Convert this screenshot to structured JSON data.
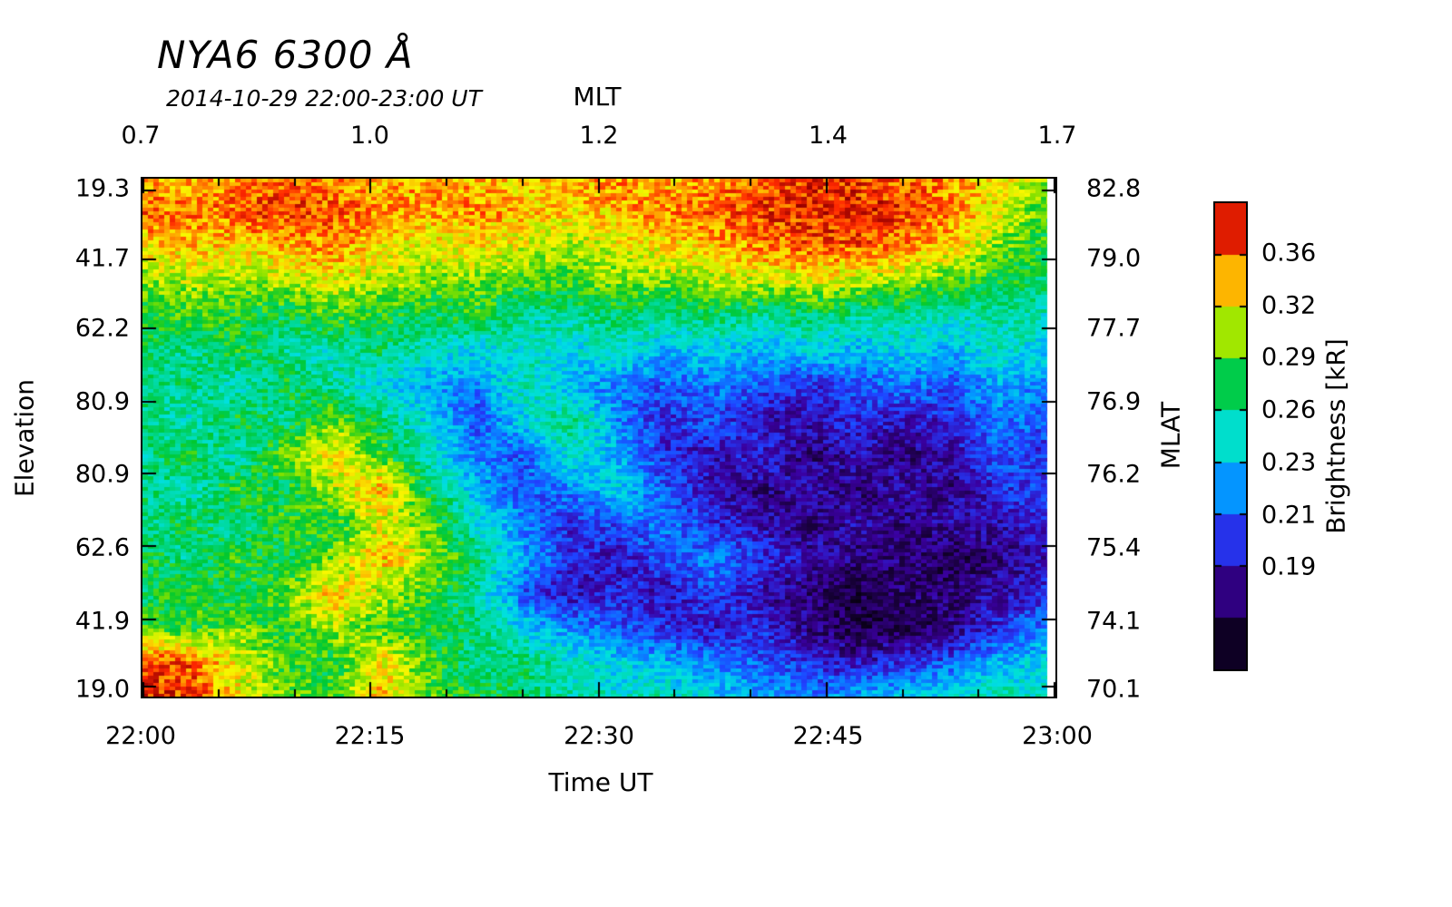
{
  "chart_data": {
    "type": "heatmap",
    "title": "NYA6 6300 Å",
    "subtitle": "2014-10-29 22:00-23:00 UT",
    "xlabel_top": "MLT",
    "xlabel_bottom": "Time UT",
    "ylabel_left": "Elevation",
    "ylabel_right": "MLAT",
    "colorbar_label": "Brightness [kR]",
    "x_ticks_top": {
      "labels": [
        "0.7",
        "1.0",
        "1.2",
        "1.4",
        "1.7"
      ],
      "fractions": [
        0,
        0.25,
        0.5,
        0.75,
        1
      ]
    },
    "x_ticks_bottom": {
      "labels": [
        "22:00",
        "22:15",
        "22:30",
        "22:45",
        "23:00"
      ],
      "fractions": [
        0,
        0.25,
        0.5,
        0.75,
        1
      ]
    },
    "y_ticks_left": {
      "labels": [
        "19.3",
        "41.7",
        "62.2",
        "80.9",
        "80.9",
        "62.6",
        "41.9",
        "19.0"
      ],
      "fractions": [
        0.023,
        0.157,
        0.29,
        0.431,
        0.571,
        0.711,
        0.852,
        0.983
      ]
    },
    "y_ticks_right": {
      "labels": [
        "82.8",
        "79.0",
        "77.7",
        "76.9",
        "76.2",
        "75.4",
        "74.1",
        "70.1"
      ],
      "fractions": [
        0.023,
        0.157,
        0.29,
        0.431,
        0.571,
        0.711,
        0.852,
        0.983
      ]
    },
    "colorbar_ticks": {
      "labels": [
        "0.36",
        "0.32",
        "0.29",
        "0.26",
        "0.23",
        "0.21",
        "0.19"
      ],
      "fractions_from_top": [
        0.111,
        0.222,
        0.333,
        0.444,
        0.556,
        0.667,
        0.778
      ]
    },
    "value_range_kR": [
      0.155,
      0.4
    ],
    "scale": "log",
    "colorbar_segments": 9,
    "colormap": [
      [
        0.0,
        "#000000"
      ],
      [
        0.1,
        "#1a0040"
      ],
      [
        0.2,
        "#3a00a0"
      ],
      [
        0.3,
        "#2040ff"
      ],
      [
        0.4,
        "#00a0ff"
      ],
      [
        0.48,
        "#00e0e0"
      ],
      [
        0.56,
        "#00d890"
      ],
      [
        0.63,
        "#00c830"
      ],
      [
        0.7,
        "#80e000"
      ],
      [
        0.78,
        "#f8f800"
      ],
      [
        0.85,
        "#ffa000"
      ],
      [
        0.92,
        "#ff2800"
      ],
      [
        1.0,
        "#960000"
      ]
    ],
    "grid": {
      "description": "Approximate brightness values [kR]; rows = elevation bins top(19.3)->bottom(19.0), cols = time 22:00->23:00",
      "n_rows": 16,
      "n_cols": 20,
      "values": [
        [
          0.35,
          0.34,
          0.35,
          0.36,
          0.35,
          0.34,
          0.35,
          0.34,
          0.33,
          0.34,
          0.35,
          0.34,
          0.35,
          0.36,
          0.37,
          0.37,
          0.36,
          0.35,
          0.33,
          0.3
        ],
        [
          0.36,
          0.35,
          0.36,
          0.37,
          0.36,
          0.35,
          0.34,
          0.35,
          0.34,
          0.33,
          0.34,
          0.35,
          0.36,
          0.37,
          0.38,
          0.38,
          0.37,
          0.35,
          0.32,
          0.29
        ],
        [
          0.33,
          0.34,
          0.33,
          0.34,
          0.35,
          0.33,
          0.32,
          0.33,
          0.32,
          0.31,
          0.32,
          0.33,
          0.34,
          0.35,
          0.36,
          0.36,
          0.35,
          0.33,
          0.3,
          0.28
        ],
        [
          0.3,
          0.31,
          0.3,
          0.31,
          0.32,
          0.31,
          0.3,
          0.3,
          0.29,
          0.29,
          0.3,
          0.3,
          0.31,
          0.31,
          0.32,
          0.31,
          0.3,
          0.29,
          0.28,
          0.27
        ],
        [
          0.28,
          0.29,
          0.28,
          0.27,
          0.29,
          0.28,
          0.27,
          0.28,
          0.26,
          0.26,
          0.27,
          0.26,
          0.27,
          0.26,
          0.27,
          0.26,
          0.26,
          0.25,
          0.26,
          0.25
        ],
        [
          0.27,
          0.26,
          0.28,
          0.26,
          0.25,
          0.27,
          0.25,
          0.24,
          0.25,
          0.24,
          0.25,
          0.23,
          0.24,
          0.23,
          0.24,
          0.23,
          0.24,
          0.23,
          0.25,
          0.24
        ],
        [
          0.26,
          0.27,
          0.25,
          0.28,
          0.26,
          0.24,
          0.23,
          0.22,
          0.26,
          0.23,
          0.22,
          0.21,
          0.22,
          0.21,
          0.2,
          0.21,
          0.22,
          0.21,
          0.23,
          0.22
        ],
        [
          0.27,
          0.25,
          0.28,
          0.26,
          0.3,
          0.27,
          0.24,
          0.21,
          0.24,
          0.27,
          0.22,
          0.2,
          0.21,
          0.19,
          0.19,
          0.2,
          0.19,
          0.2,
          0.22,
          0.21
        ],
        [
          0.26,
          0.28,
          0.25,
          0.3,
          0.33,
          0.29,
          0.25,
          0.22,
          0.21,
          0.25,
          0.23,
          0.2,
          0.19,
          0.2,
          0.18,
          0.19,
          0.18,
          0.19,
          0.21,
          0.2
        ],
        [
          0.27,
          0.25,
          0.29,
          0.27,
          0.31,
          0.34,
          0.28,
          0.23,
          0.21,
          0.22,
          0.24,
          0.21,
          0.19,
          0.18,
          0.19,
          0.18,
          0.19,
          0.18,
          0.2,
          0.21
        ],
        [
          0.26,
          0.28,
          0.26,
          0.29,
          0.28,
          0.32,
          0.3,
          0.25,
          0.22,
          0.2,
          0.21,
          0.22,
          0.2,
          0.19,
          0.18,
          0.19,
          0.18,
          0.19,
          0.19,
          0.2
        ],
        [
          0.28,
          0.26,
          0.29,
          0.27,
          0.3,
          0.34,
          0.31,
          0.27,
          0.23,
          0.2,
          0.19,
          0.21,
          0.22,
          0.2,
          0.19,
          0.18,
          0.18,
          0.17,
          0.18,
          0.19
        ],
        [
          0.27,
          0.29,
          0.27,
          0.3,
          0.34,
          0.31,
          0.29,
          0.26,
          0.21,
          0.19,
          0.2,
          0.19,
          0.21,
          0.19,
          0.18,
          0.17,
          0.18,
          0.18,
          0.19,
          0.2
        ],
        [
          0.29,
          0.28,
          0.3,
          0.28,
          0.31,
          0.29,
          0.28,
          0.27,
          0.24,
          0.22,
          0.21,
          0.2,
          0.19,
          0.2,
          0.18,
          0.17,
          0.17,
          0.18,
          0.2,
          0.22
        ],
        [
          0.37,
          0.36,
          0.32,
          0.29,
          0.28,
          0.33,
          0.29,
          0.26,
          0.27,
          0.25,
          0.24,
          0.23,
          0.22,
          0.21,
          0.2,
          0.19,
          0.2,
          0.21,
          0.23,
          0.24
        ],
        [
          0.38,
          0.37,
          0.33,
          0.3,
          0.29,
          0.34,
          0.3,
          0.28,
          0.27,
          0.26,
          0.25,
          0.26,
          0.24,
          0.23,
          0.22,
          0.23,
          0.24,
          0.25,
          0.26,
          0.25
        ]
      ]
    }
  }
}
